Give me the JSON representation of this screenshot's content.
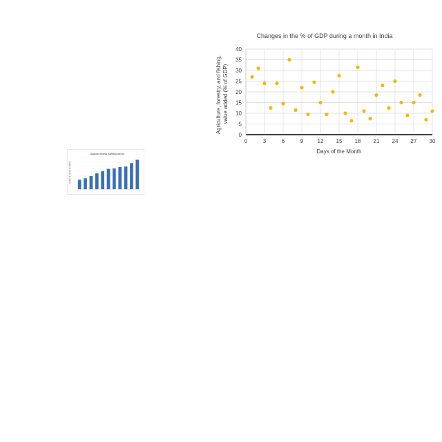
{
  "chart_data": [
    {
      "type": "scatter",
      "title": "Changes in the % of GDP during a month in India",
      "xlabel": "Days of the Month",
      "ylabel": "Agriculture, forestry, and fishing, value added (% of GDP)",
      "xlim": [
        0,
        30
      ],
      "ylim": [
        0,
        40
      ],
      "xticks": [
        0,
        3,
        6,
        9,
        12,
        15,
        18,
        21,
        24,
        27,
        30
      ],
      "yticks": [
        0,
        5,
        10,
        15,
        20,
        25,
        30,
        35,
        40
      ],
      "grid": true,
      "color": "#F5B800",
      "x": [
        1,
        2,
        3,
        4,
        5,
        6,
        7,
        8,
        9,
        10,
        11,
        12,
        13,
        14,
        15,
        16,
        17,
        18,
        19,
        20,
        21,
        22,
        23,
        24,
        25,
        26,
        27,
        28,
        29,
        30
      ],
      "y": [
        27,
        31,
        24,
        12.5,
        24,
        14.5,
        35,
        11.5,
        22,
        9.5,
        24.5,
        15,
        9.5,
        20,
        27.5,
        10,
        6.5,
        31.5,
        11,
        7.5,
        18.5,
        23,
        12.5,
        25,
        15,
        9,
        15,
        18.5,
        7,
        11
      ]
    },
    {
      "type": "bar",
      "title": "Japanese tourists travelling abroad",
      "ylabel": "number of tourists (in million)",
      "color": "#3A6FB5",
      "values": [
        4.2,
        4.8,
        5.8,
        7.0,
        8.0,
        9.0,
        9.2,
        9.8,
        10.0,
        11.5,
        13.0
      ]
    }
  ]
}
